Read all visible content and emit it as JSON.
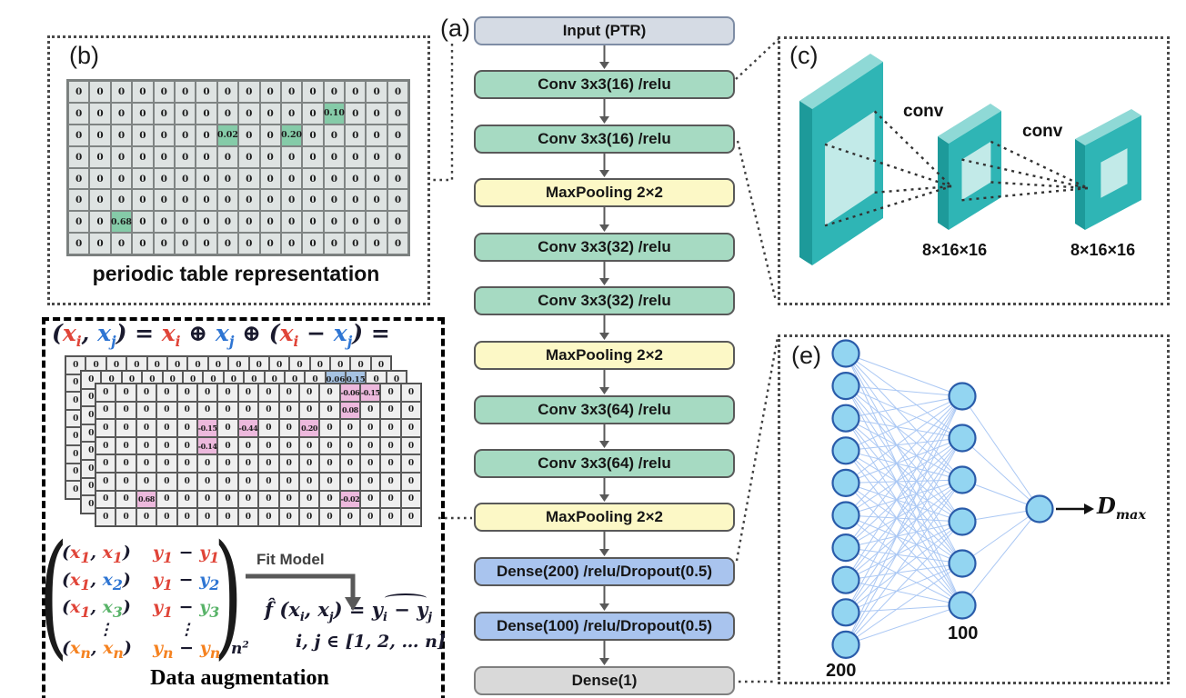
{
  "panels": {
    "a_label": "(a)",
    "b_label": "(b)",
    "c_label": "(c)",
    "e_label": "(e)"
  },
  "flowchart": {
    "boxes": [
      {
        "label": "Input (PTR)",
        "type": "input"
      },
      {
        "label": "Conv 3x3(16) /relu",
        "type": "conv"
      },
      {
        "label": "Conv 3x3(16) /relu",
        "type": "conv"
      },
      {
        "label": "MaxPooling 2×2",
        "type": "pool"
      },
      {
        "label": "Conv 3x3(32) /relu",
        "type": "conv"
      },
      {
        "label": "Conv 3x3(32) /relu",
        "type": "conv"
      },
      {
        "label": "MaxPooling 2×2",
        "type": "pool"
      },
      {
        "label": "Conv 3x3(64) /relu",
        "type": "conv"
      },
      {
        "label": "Conv 3x3(64) /relu",
        "type": "conv"
      },
      {
        "label": "MaxPooling 2×2",
        "type": "pool"
      },
      {
        "label": "Dense(200) /relu/Dropout(0.5)",
        "type": "dense"
      },
      {
        "label": "Dense(100) /relu/Dropout(0.5)",
        "type": "dense"
      },
      {
        "label": "Dense(1)",
        "type": "output"
      }
    ]
  },
  "panel_b": {
    "caption": "periodic table representation",
    "grid": {
      "rows": 8,
      "cols": 16,
      "fill": "0",
      "highlights": [
        {
          "r": 1,
          "c": 12,
          "v": "0.10",
          "hl": "green"
        },
        {
          "r": 2,
          "c": 7,
          "v": "0.02",
          "hl": "green"
        },
        {
          "r": 2,
          "c": 10,
          "v": "0.20",
          "hl": "green"
        },
        {
          "r": 6,
          "c": 2,
          "v": "0.68",
          "hl": "green"
        }
      ]
    }
  },
  "panel_c": {
    "conv_labels": [
      "conv",
      "conv"
    ],
    "dim_labels": [
      "8×16×16",
      "8×16×16"
    ]
  },
  "panel_e": {
    "left_count": 10,
    "mid_count": 6,
    "left_label": "200",
    "mid_label": "100",
    "output_label": "D",
    "output_sub": "max"
  },
  "augmentation": {
    "caption": "Data augmentation",
    "fit_model": "Fit Model",
    "formula_top": [
      {
        "t": "("
      },
      {
        "t": "x",
        "s": "i",
        "c": "r"
      },
      {
        "t": ", "
      },
      {
        "t": "x",
        "s": "j",
        "c": "b"
      },
      {
        "t": ") = "
      },
      {
        "t": "x",
        "s": "i",
        "c": "r"
      },
      {
        "t": " ⊕ "
      },
      {
        "t": "x",
        "s": "j",
        "c": "b"
      },
      {
        "t": " ⊕ ("
      },
      {
        "t": "x",
        "s": "i",
        "c": "r"
      },
      {
        "t": " − "
      },
      {
        "t": "x",
        "s": "j",
        "c": "b"
      },
      {
        "t": ") ="
      }
    ],
    "sheets": {
      "back": {
        "rows": 8,
        "cols": 16,
        "fill": "0",
        "highlights": []
      },
      "mid": {
        "rows": 8,
        "cols": 16,
        "fill": "0",
        "highlights": [
          {
            "r": 0,
            "c": 12,
            "v": "0.06",
            "hl": "blue"
          },
          {
            "r": 0,
            "c": 13,
            "v": "0.15",
            "hl": "blue"
          }
        ]
      },
      "front": {
        "rows": 8,
        "cols": 16,
        "fill": "0",
        "highlights": [
          {
            "r": 0,
            "c": 12,
            "v": "-0.06",
            "hl": "pink"
          },
          {
            "r": 0,
            "c": 13,
            "v": "-0.15",
            "hl": "pink"
          },
          {
            "r": 1,
            "c": 12,
            "v": "0.08",
            "hl": "pink"
          },
          {
            "r": 2,
            "c": 5,
            "v": "-0.15",
            "hl": "pink"
          },
          {
            "r": 2,
            "c": 7,
            "v": "-0.44",
            "hl": "pink"
          },
          {
            "r": 2,
            "c": 10,
            "v": "0.20",
            "hl": "pink"
          },
          {
            "r": 3,
            "c": 5,
            "v": "-0.14",
            "hl": "pink"
          },
          {
            "r": 6,
            "c": 2,
            "v": "0.68",
            "hl": "pink"
          },
          {
            "r": 6,
            "c": 12,
            "v": "-0.02",
            "hl": "pink"
          }
        ]
      }
    },
    "matrix": {
      "rows": [
        {
          "left": [
            {
              "t": "("
            },
            {
              "t": "x",
              "s": "1",
              "c": "r"
            },
            {
              "t": ", "
            },
            {
              "t": "x",
              "s": "1",
              "c": "r"
            },
            {
              "t": ")"
            }
          ],
          "right": [
            {
              "t": "y",
              "s": "1",
              "c": "r"
            },
            {
              "t": " − "
            },
            {
              "t": "y",
              "s": "1",
              "c": "r"
            }
          ]
        },
        {
          "left": [
            {
              "t": "("
            },
            {
              "t": "x",
              "s": "1",
              "c": "r"
            },
            {
              "t": ", "
            },
            {
              "t": "x",
              "s": "2",
              "c": "b"
            },
            {
              "t": ")"
            }
          ],
          "right": [
            {
              "t": "y",
              "s": "1",
              "c": "r"
            },
            {
              "t": " − "
            },
            {
              "t": "y",
              "s": "2",
              "c": "b"
            }
          ]
        },
        {
          "left": [
            {
              "t": "("
            },
            {
              "t": "x",
              "s": "1",
              "c": "r"
            },
            {
              "t": ", "
            },
            {
              "t": "x",
              "s": "3",
              "c": "g"
            },
            {
              "t": ")"
            }
          ],
          "right": [
            {
              "t": "y",
              "s": "1",
              "c": "r"
            },
            {
              "t": " − "
            },
            {
              "t": "y",
              "s": "3",
              "c": "g"
            }
          ]
        },
        {
          "dots": true
        },
        {
          "left": [
            {
              "t": "("
            },
            {
              "t": "x",
              "s": "n",
              "c": "o"
            },
            {
              "t": ", "
            },
            {
              "t": "x",
              "s": "n",
              "c": "o"
            },
            {
              "t": ")"
            }
          ],
          "right": [
            {
              "t": "y",
              "s": "n",
              "c": "o"
            },
            {
              "t": " − "
            },
            {
              "t": "y",
              "s": "n",
              "c": "o"
            }
          ]
        }
      ],
      "subscript": [
        {
          "t": "n",
          "sup": "2"
        }
      ]
    },
    "fhat": [
      {
        "t": "f̂ ("
      },
      {
        "t": "x",
        "s": "i"
      },
      {
        "t": ", "
      },
      {
        "t": "x",
        "s": "j"
      },
      {
        "t": ") = "
      },
      {
        "t": "y"
      },
      {
        "hat": [
          {
            "t": "",
            "s": "i"
          },
          {
            "t": " − "
          },
          {
            "t": "y"
          }
        ]
      },
      {
        "t": "",
        "s": "j"
      }
    ],
    "domain_line": "i, j ∈ [1, 2, … n]"
  },
  "colors": {
    "red": "#e04438",
    "blue": "#2e75d3",
    "green": "#58b368",
    "orange": "#f58220",
    "conv_box": "#a6dac2",
    "pool_box": "#fcf8c6",
    "dense_box": "#a9c4ee",
    "input_box": "#d5dbe4",
    "output_box": "#d9d9d9",
    "green_cell": "#85cba8",
    "pink_cell": "#edb9dd",
    "blue_cell": "#a6c3e3",
    "teal_face": "#2fb5b5",
    "teal_top": "#8fd9d6",
    "teal_side": "#1d9a9a",
    "teal_hole": "#c2eae8",
    "neuron_fill": "#93d5f1",
    "neuron_stroke": "#2a5caa",
    "link": "#abc8f4",
    "arrow_gray": "#595959",
    "dotted": "#3f3f3f"
  }
}
